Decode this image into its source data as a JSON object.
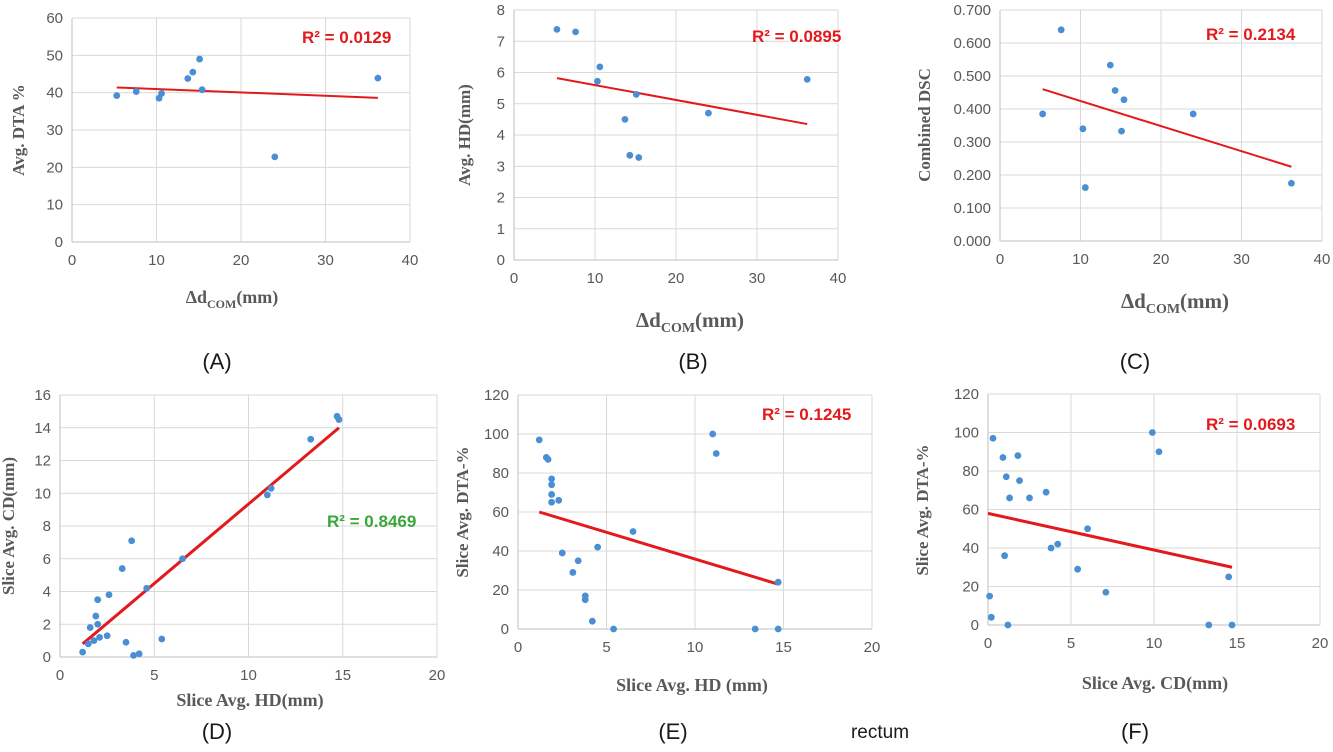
{
  "caption": "rectum",
  "chart_data": [
    {
      "panel": "(A)",
      "type": "scatter",
      "xlabel": "Δd",
      "xlabel_sub": "COM",
      "xlabel_unit": "(mm)",
      "ylabel": "Avg. DTA %",
      "xlim": [
        0,
        40
      ],
      "ylim": [
        0,
        60
      ],
      "xticks": [
        0,
        10,
        20,
        30,
        40
      ],
      "yticks": [
        0,
        10,
        20,
        30,
        40,
        50,
        60
      ],
      "yticklabels": [
        "0",
        "10",
        "20",
        "30",
        "40",
        "50",
        "60"
      ],
      "points": [
        [
          5.3,
          39.2
        ],
        [
          7.6,
          40.3
        ],
        [
          10.3,
          38.5
        ],
        [
          10.6,
          39.8
        ],
        [
          13.7,
          43.8
        ],
        [
          14.3,
          45.5
        ],
        [
          15.1,
          49.0
        ],
        [
          15.4,
          40.8
        ],
        [
          24.0,
          22.8
        ],
        [
          36.2,
          43.9
        ]
      ],
      "trendline": [
        [
          5.3,
          41.4
        ],
        [
          36.2,
          38.6
        ]
      ],
      "r2_text": "R² = 0.0129",
      "r2_color": "#e31a1c"
    },
    {
      "panel": "(B)",
      "type": "scatter",
      "xlabel": "Δd",
      "xlabel_sub": "COM",
      "xlabel_unit": "(mm)",
      "ylabel": "Avg. HD(mm)",
      "xlim": [
        0,
        40
      ],
      "ylim": [
        0,
        8
      ],
      "xticks": [
        0,
        10,
        20,
        30,
        40
      ],
      "yticks": [
        0,
        1,
        2,
        3,
        4,
        5,
        6,
        7,
        8
      ],
      "yticklabels": [
        "0",
        "1",
        "2",
        "3",
        "4",
        "5",
        "6",
        "7",
        "8"
      ],
      "points": [
        [
          5.3,
          7.38
        ],
        [
          7.6,
          7.3
        ],
        [
          10.3,
          5.72
        ],
        [
          10.6,
          6.18
        ],
        [
          13.7,
          4.5
        ],
        [
          14.3,
          3.35
        ],
        [
          15.1,
          5.3
        ],
        [
          15.4,
          3.28
        ],
        [
          24.0,
          4.7
        ],
        [
          36.2,
          5.78
        ]
      ],
      "trendline": [
        [
          5.3,
          5.82
        ],
        [
          36.2,
          4.35
        ]
      ],
      "r2_text": "R² = 0.0895",
      "r2_color": "#e31a1c"
    },
    {
      "panel": "(C)",
      "type": "scatter",
      "xlabel": "Δd",
      "xlabel_sub": "COM",
      "xlabel_unit": "(mm)",
      "ylabel": "Combined DSC",
      "xlim": [
        0,
        40
      ],
      "ylim": [
        0,
        0.7
      ],
      "xticks": [
        0,
        10,
        20,
        30,
        40
      ],
      "yticks": [
        0,
        0.1,
        0.2,
        0.3,
        0.4,
        0.5,
        0.6,
        0.7
      ],
      "yticklabels": [
        "0.000",
        "0.100",
        "0.200",
        "0.300",
        "0.400",
        "0.500",
        "0.600",
        "0.700"
      ],
      "points": [
        [
          5.3,
          0.385
        ],
        [
          7.6,
          0.64
        ],
        [
          10.3,
          0.34
        ],
        [
          10.6,
          0.162
        ],
        [
          13.7,
          0.533
        ],
        [
          14.3,
          0.456
        ],
        [
          15.1,
          0.333
        ],
        [
          15.4,
          0.428
        ],
        [
          24.0,
          0.385
        ],
        [
          36.2,
          0.175
        ]
      ],
      "trendline": [
        [
          5.3,
          0.46
        ],
        [
          36.2,
          0.225
        ]
      ],
      "r2_text": "R² = 0.2134",
      "r2_color": "#e31a1c"
    },
    {
      "panel": "(D)",
      "type": "scatter",
      "xlabel": "Slice Avg. HD(mm)",
      "ylabel": "Slice Avg. CD(mm)",
      "xlim": [
        0,
        20
      ],
      "ylim": [
        0,
        16
      ],
      "xticks": [
        0,
        5,
        10,
        15,
        20
      ],
      "yticks": [
        0,
        2,
        4,
        6,
        8,
        10,
        12,
        14,
        16
      ],
      "yticklabels": [
        "0",
        "2",
        "4",
        "6",
        "8",
        "10",
        "12",
        "14",
        "16"
      ],
      "points": [
        [
          1.2,
          0.3
        ],
        [
          1.5,
          0.8
        ],
        [
          1.6,
          1.8
        ],
        [
          1.8,
          1.0
        ],
        [
          1.9,
          2.5
        ],
        [
          2.0,
          2.0
        ],
        [
          2.0,
          3.5
        ],
        [
          2.1,
          1.2
        ],
        [
          2.5,
          1.3
        ],
        [
          2.6,
          3.8
        ],
        [
          3.3,
          5.4
        ],
        [
          3.5,
          0.9
        ],
        [
          3.8,
          7.1
        ],
        [
          3.9,
          0.1
        ],
        [
          4.2,
          0.2
        ],
        [
          4.6,
          4.2
        ],
        [
          5.4,
          1.1
        ],
        [
          6.5,
          6.0
        ],
        [
          11.0,
          9.9
        ],
        [
          11.2,
          10.3
        ],
        [
          13.3,
          13.3
        ],
        [
          14.7,
          14.7
        ],
        [
          14.8,
          14.5
        ]
      ],
      "trendline": [
        [
          1.2,
          0.8
        ],
        [
          14.8,
          14.0
        ]
      ],
      "r2_text": "R² = 0.8469",
      "r2_color": "#3aa63a"
    },
    {
      "panel": "(E)",
      "type": "scatter",
      "xlabel": "Slice Avg. HD (mm)",
      "ylabel": "Slice Avg. DTA-%",
      "xlim": [
        0,
        20
      ],
      "ylim": [
        0,
        120
      ],
      "xticks": [
        0,
        5,
        10,
        15,
        20
      ],
      "yticks": [
        0,
        20,
        40,
        60,
        80,
        100,
        120
      ],
      "yticklabels": [
        "0",
        "20",
        "40",
        "60",
        "80",
        "100",
        "120"
      ],
      "points": [
        [
          1.2,
          97
        ],
        [
          1.6,
          88
        ],
        [
          1.7,
          87
        ],
        [
          1.9,
          77
        ],
        [
          1.9,
          74
        ],
        [
          1.9,
          69
        ],
        [
          1.9,
          65
        ],
        [
          2.3,
          66
        ],
        [
          2.5,
          39
        ],
        [
          3.1,
          29
        ],
        [
          3.4,
          35
        ],
        [
          3.8,
          17
        ],
        [
          3.8,
          15
        ],
        [
          4.2,
          4
        ],
        [
          4.5,
          42
        ],
        [
          5.4,
          0
        ],
        [
          6.5,
          50
        ],
        [
          11.0,
          100
        ],
        [
          11.2,
          90
        ],
        [
          13.4,
          0
        ],
        [
          14.7,
          24
        ],
        [
          14.7,
          0
        ]
      ],
      "trendline": [
        [
          1.2,
          60
        ],
        [
          14.7,
          23
        ]
      ],
      "r2_text": "R² = 0.1245",
      "r2_color": "#e31a1c"
    },
    {
      "panel": "(F)",
      "type": "scatter",
      "xlabel": "Slice Avg. CD(mm)",
      "ylabel": "Slice Avg. DTA-%",
      "xlim": [
        0,
        20
      ],
      "ylim": [
        0,
        120
      ],
      "xticks": [
        0,
        5,
        10,
        15,
        20
      ],
      "yticks": [
        0,
        20,
        40,
        60,
        80,
        100,
        120
      ],
      "yticklabels": [
        "0",
        "20",
        "40",
        "60",
        "80",
        "100",
        "120"
      ],
      "points": [
        [
          0.1,
          15
        ],
        [
          0.2,
          4
        ],
        [
          0.3,
          97
        ],
        [
          0.9,
          87
        ],
        [
          1.0,
          36
        ],
        [
          1.1,
          77
        ],
        [
          1.2,
          0
        ],
        [
          1.3,
          66
        ],
        [
          1.8,
          88
        ],
        [
          1.9,
          75
        ],
        [
          2.5,
          66
        ],
        [
          3.5,
          69
        ],
        [
          3.8,
          40
        ],
        [
          4.2,
          42
        ],
        [
          5.4,
          29
        ],
        [
          6.0,
          50
        ],
        [
          7.1,
          17
        ],
        [
          9.9,
          100
        ],
        [
          10.3,
          90
        ],
        [
          13.3,
          0
        ],
        [
          14.5,
          25
        ],
        [
          14.7,
          0
        ]
      ],
      "trendline": [
        [
          0,
          58
        ],
        [
          14.7,
          30
        ]
      ],
      "r2_text": "R² = 0.0693",
      "r2_color": "#e31a1c"
    }
  ]
}
